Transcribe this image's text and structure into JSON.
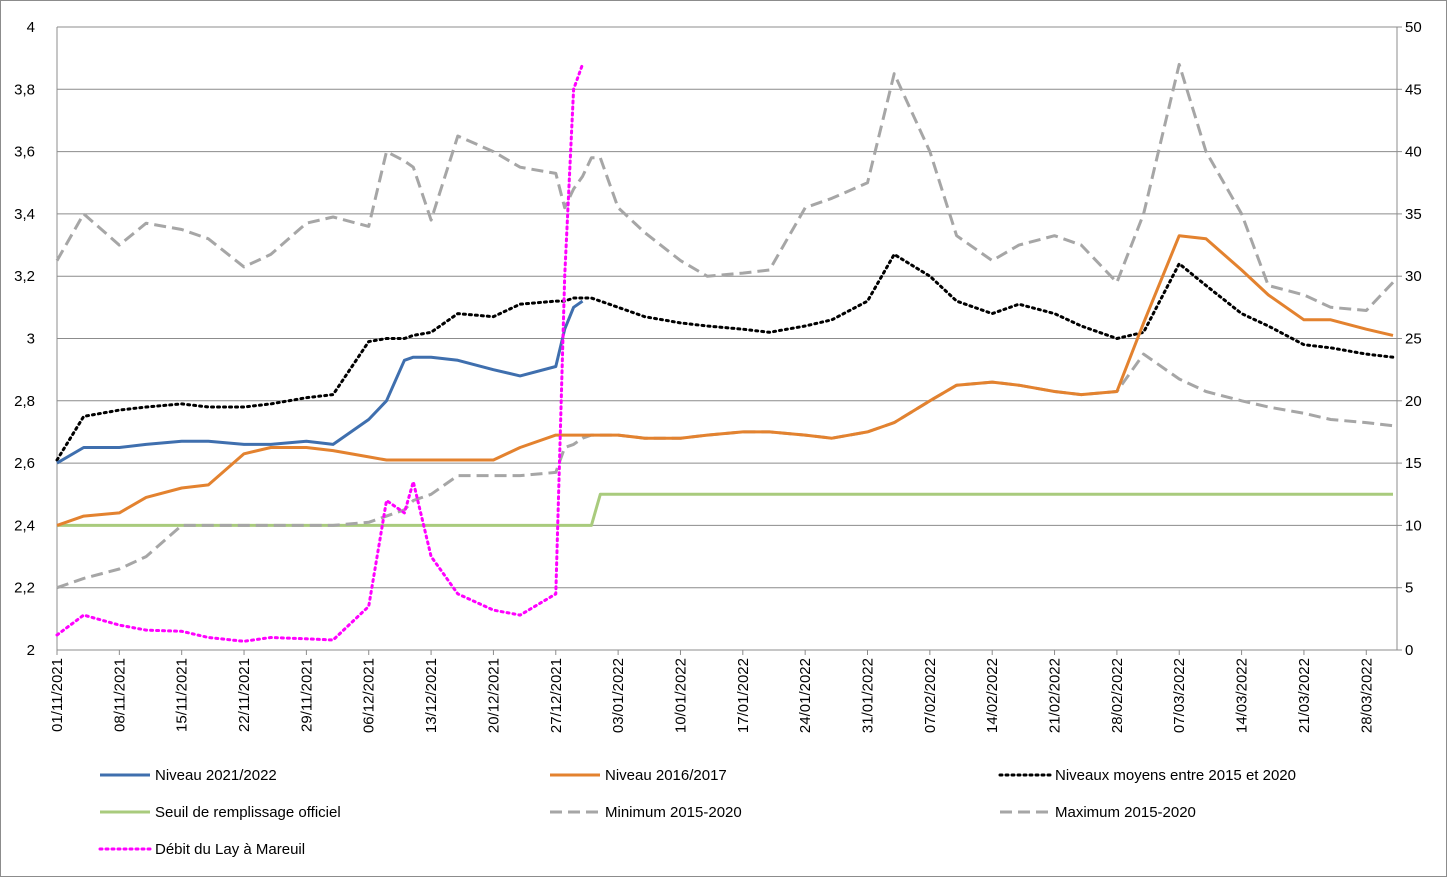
{
  "chart_data": {
    "type": "line",
    "x": [
      "01/11/2021",
      "04/11/2021",
      "08/11/2021",
      "11/11/2021",
      "15/11/2021",
      "18/11/2021",
      "22/11/2021",
      "25/11/2021",
      "29/11/2021",
      "02/12/2021",
      "06/12/2021",
      "08/12/2021",
      "10/12/2021",
      "11/12/2021",
      "13/12/2021",
      "16/12/2021",
      "20/12/2021",
      "23/12/2021",
      "27/12/2021",
      "28/12/2021",
      "29/12/2021",
      "30/12/2021",
      "31/12/2021",
      "01/01/2022",
      "03/01/2022",
      "06/01/2022",
      "10/01/2022",
      "13/01/2022",
      "17/01/2022",
      "20/01/2022",
      "24/01/2022",
      "27/01/2022",
      "31/01/2022",
      "03/02/2022",
      "07/02/2022",
      "10/02/2022",
      "14/02/2022",
      "17/02/2022",
      "21/02/2022",
      "24/02/2022",
      "28/02/2022",
      "03/03/2022",
      "07/03/2022",
      "10/03/2022",
      "14/03/2022",
      "17/03/2022",
      "21/03/2022",
      "24/03/2022",
      "28/03/2022",
      "31/03/2022"
    ],
    "xlim": [
      "01/11/2021",
      "31/03/2022"
    ],
    "xticks": [
      "01/11/2021",
      "08/11/2021",
      "15/11/2021",
      "22/11/2021",
      "29/11/2021",
      "06/12/2021",
      "13/12/2021",
      "20/12/2021",
      "27/12/2021",
      "03/01/2022",
      "10/01/2022",
      "17/01/2022",
      "24/01/2022",
      "31/01/2022",
      "07/02/2022",
      "14/02/2022",
      "21/02/2022",
      "28/02/2022",
      "07/03/2022",
      "14/03/2022",
      "21/03/2022",
      "28/03/2022"
    ],
    "ylim": [
      2,
      4
    ],
    "yticks": [
      2,
      {
        "value": 2.2,
        "label": "2,2"
      },
      {
        "value": 2.4,
        "label": "2,4"
      },
      {
        "value": 2.6,
        "label": "2,6"
      },
      {
        "value": 2.8,
        "label": "2,8"
      },
      3,
      {
        "value": 3.2,
        "label": "3,2"
      },
      {
        "value": 3.4,
        "label": "3,4"
      },
      {
        "value": 3.6,
        "label": "3,6"
      },
      {
        "value": 3.8,
        "label": "3,8"
      },
      4
    ],
    "y2lim": [
      0,
      50
    ],
    "y2ticks": [
      0,
      5,
      10,
      15,
      20,
      25,
      30,
      35,
      40,
      45,
      50
    ],
    "grid": true,
    "legend": "bottom",
    "series": [
      {
        "name": "Niveau 2021/2022",
        "color": "#3f6fae",
        "style": "solid",
        "values": [
          2.6,
          2.65,
          2.65,
          2.66,
          2.67,
          2.67,
          2.66,
          2.66,
          2.67,
          2.66,
          2.74,
          2.8,
          2.93,
          2.94,
          2.94,
          2.93,
          2.9,
          2.88,
          2.91,
          3.03,
          3.1,
          3.12,
          null,
          null,
          null,
          null,
          null,
          null,
          null,
          null,
          null,
          null,
          null,
          null,
          null,
          null,
          null,
          null,
          null,
          null,
          null,
          null,
          null,
          null,
          null,
          null,
          null,
          null,
          null,
          null
        ]
      },
      {
        "name": "Niveau 2016/2017",
        "color": "#e3822f",
        "style": "solid",
        "values": [
          2.4,
          2.43,
          2.44,
          2.49,
          2.52,
          2.53,
          2.63,
          2.65,
          2.65,
          2.64,
          2.62,
          2.61,
          2.61,
          2.61,
          2.61,
          2.61,
          2.61,
          2.65,
          2.69,
          2.69,
          2.69,
          2.69,
          2.69,
          2.69,
          2.69,
          2.68,
          2.68,
          2.69,
          2.7,
          2.7,
          2.69,
          2.68,
          2.7,
          2.73,
          2.8,
          2.85,
          2.86,
          2.85,
          2.83,
          2.82,
          2.83,
          3.05,
          3.33,
          3.32,
          3.22,
          3.14,
          3.06,
          3.06,
          3.03,
          3.01
        ]
      },
      {
        "name": "Niveaux moyens entre 2015 et 2020",
        "color": "#000000",
        "style": "dotted",
        "values": [
          2.61,
          2.75,
          2.77,
          2.78,
          2.79,
          2.78,
          2.78,
          2.79,
          2.81,
          2.82,
          2.99,
          3.0,
          3.0,
          3.01,
          3.02,
          3.08,
          3.07,
          3.11,
          3.12,
          3.12,
          3.13,
          3.13,
          3.13,
          3.12,
          3.1,
          3.07,
          3.05,
          3.04,
          3.03,
          3.02,
          3.04,
          3.06,
          3.12,
          3.27,
          3.2,
          3.12,
          3.08,
          3.11,
          3.08,
          3.04,
          3.0,
          3.02,
          3.24,
          3.17,
          3.08,
          3.04,
          2.98,
          2.97,
          2.95,
          2.94
        ]
      },
      {
        "name": "Seuil de remplissage officiel",
        "color": "#a9cb7d",
        "style": "solid",
        "values": [
          2.4,
          2.4,
          2.4,
          2.4,
          2.4,
          2.4,
          2.4,
          2.4,
          2.4,
          2.4,
          2.4,
          2.4,
          2.4,
          2.4,
          2.4,
          2.4,
          2.4,
          2.4,
          2.4,
          2.4,
          2.4,
          2.4,
          2.4,
          2.5,
          2.5,
          2.5,
          2.5,
          2.5,
          2.5,
          2.5,
          2.5,
          2.5,
          2.5,
          2.5,
          2.5,
          2.5,
          2.5,
          2.5,
          2.5,
          2.5,
          2.5,
          2.5,
          2.5,
          2.5,
          2.5,
          2.5,
          2.5,
          2.5,
          2.5,
          2.5
        ]
      },
      {
        "name": "Minimum 2015-2020",
        "color": "#a6a6a6",
        "style": "dashed",
        "values": [
          2.2,
          2.23,
          2.26,
          2.3,
          2.4,
          2.4,
          2.4,
          2.4,
          2.4,
          2.4,
          2.41,
          2.43,
          2.45,
          2.48,
          2.5,
          2.56,
          2.56,
          2.56,
          2.57,
          2.65,
          2.66,
          2.68,
          2.69,
          2.69,
          2.69,
          2.68,
          2.68,
          2.69,
          2.7,
          2.7,
          2.69,
          2.68,
          2.7,
          2.73,
          2.8,
          2.85,
          2.86,
          2.85,
          2.83,
          2.82,
          2.83,
          2.95,
          2.87,
          2.83,
          2.8,
          2.78,
          2.76,
          2.74,
          2.73,
          2.72
        ]
      },
      {
        "name": "Maximum 2015-2020",
        "color": "#a6a6a6",
        "style": "dashed",
        "values": [
          3.25,
          3.4,
          3.3,
          3.37,
          3.35,
          3.32,
          3.23,
          3.27,
          3.37,
          3.39,
          3.36,
          3.6,
          3.57,
          3.55,
          3.38,
          3.65,
          3.6,
          3.55,
          3.53,
          3.42,
          3.48,
          3.52,
          3.58,
          3.58,
          3.42,
          3.34,
          3.25,
          3.2,
          3.21,
          3.22,
          3.42,
          3.45,
          3.5,
          3.85,
          3.6,
          3.33,
          3.25,
          3.3,
          3.33,
          3.3,
          3.18,
          3.4,
          3.88,
          3.6,
          3.4,
          3.17,
          3.14,
          3.1,
          3.09,
          3.18
        ]
      },
      {
        "name": "Débit du Lay à Mareuil",
        "color": "#ff00ff",
        "style": "dotted",
        "axis": "y2",
        "values": [
          1.2,
          2.8,
          2.0,
          1.6,
          1.5,
          1.0,
          0.7,
          1.0,
          0.9,
          0.8,
          3.5,
          12.0,
          11.0,
          13.5,
          7.5,
          4.5,
          3.2,
          2.8,
          4.5,
          30,
          45,
          47,
          null,
          null,
          null,
          null,
          null,
          null,
          null,
          null,
          null,
          null,
          null,
          null,
          null,
          null,
          null,
          null,
          null,
          null,
          null,
          null,
          null,
          null,
          null,
          null,
          null,
          null,
          null,
          null
        ]
      }
    ]
  }
}
